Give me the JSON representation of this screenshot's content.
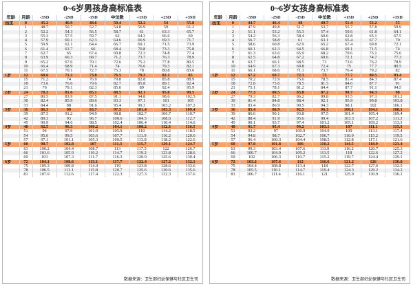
{
  "panels": [
    {
      "id": "boys",
      "title": "0~6岁男孩身高标准表",
      "headers": [
        "年龄",
        "月龄",
        "-3SD",
        "-2SD",
        "-1SD",
        "中位数",
        "+1SD",
        "+2SD",
        "+3SD"
      ],
      "source": "数据来源：卫生部妇幼保健与社区卫生司",
      "rows": [
        [
          "出生",
          "0",
          "45.2",
          "46.9",
          "48.6",
          "50.4",
          "52.2",
          "54",
          "55.8"
        ],
        [
          "",
          "1",
          "48.7",
          "50.7",
          "52.7",
          "54.8",
          "56.9",
          "59",
          "61.2"
        ],
        [
          "",
          "2",
          "52.2",
          "54.3",
          "56.5",
          "58.7",
          "61",
          "63.3",
          "65.7"
        ],
        [
          "",
          "3",
          "55.3",
          "57.5",
          "59.7",
          "62",
          "64.3",
          "66.6",
          "69"
        ],
        [
          "",
          "4",
          "57.9",
          "60.1",
          "62.3",
          "64.6",
          "66.9",
          "69.3",
          "71.7"
        ],
        [
          "",
          "5",
          "59.9",
          "62.1",
          "64.4",
          "66.7",
          "69.1",
          "71.5",
          "73.9"
        ],
        [
          "",
          "6",
          "61.4",
          "63.7",
          "66",
          "68.4",
          "70.8",
          "73.3",
          "75.8"
        ],
        [
          "",
          "7",
          "62.7",
          "65",
          "67.4",
          "69.8",
          "72.3",
          "74.8",
          "77.4"
        ],
        [
          "",
          "8",
          "63.9",
          "66.3",
          "68.7",
          "71.2",
          "73.7",
          "76.3",
          "78.9"
        ],
        [
          "",
          "9",
          "65.2",
          "67.6",
          "70.1",
          "72.6",
          "75.2",
          "77.8",
          "80.5"
        ],
        [
          "",
          "10",
          "66.4",
          "68.9",
          "71.4",
          "74",
          "76.6",
          "79.3",
          "82.1"
        ],
        [
          "",
          "11",
          "67.5",
          "70.1",
          "72.7",
          "75.3",
          "78",
          "80.8",
          "83.6"
        ],
        [
          "1岁",
          "12",
          "68.6",
          "71.2",
          "73.8",
          "76.5",
          "79.3",
          "82.1",
          "85"
        ],
        [
          "",
          "15",
          "71.2",
          "74",
          "76.9",
          "79.8",
          "82.8",
          "85.8",
          "88.9"
        ],
        [
          "",
          "18",
          "73.6",
          "76.6",
          "79.6",
          "82.7",
          "85.8",
          "89.1",
          "92.4"
        ],
        [
          "",
          "21",
          "76",
          "79.1",
          "82.3",
          "85.6",
          "89",
          "92.4",
          "95.9"
        ],
        [
          "2岁",
          "24",
          "78.3",
          "81.6",
          "85.1",
          "88.5",
          "92.1",
          "95.8",
          "99.5"
        ],
        [
          "",
          "27",
          "80.5",
          "83.9",
          "87.5",
          "91.1",
          "94.8",
          "98.6",
          "102.5"
        ],
        [
          "",
          "30",
          "82.4",
          "85.9",
          "89.6",
          "93.3",
          "97.1",
          "101",
          "105"
        ],
        [
          "",
          "33",
          "84.4",
          "88",
          "91.6",
          "95.4",
          "99.3",
          "103.2",
          "107.2"
        ],
        [
          "3岁",
          "36",
          "86.3",
          "90",
          "93.7",
          "97.5",
          "101.4",
          "105.3",
          "109.4"
        ],
        [
          "",
          "39",
          "87.5",
          "91.2",
          "94.9",
          "98.8",
          "102.7",
          "106.7",
          "110.7"
        ],
        [
          "",
          "42",
          "89.3",
          "93",
          "96.7",
          "100.6",
          "104.5",
          "108.6",
          "112.7"
        ],
        [
          "",
          "45",
          "90.9",
          "94.6",
          "98.5",
          "102.4",
          "106.4",
          "110.4",
          "114.6"
        ],
        [
          "4岁",
          "48",
          "92.5",
          "96.3",
          "100.2",
          "104.1",
          "108.2",
          "112.3",
          "116.5"
        ],
        [
          "",
          "51",
          "94",
          "97.9",
          "101.9",
          "105.9",
          "110",
          "114.2",
          "118.5"
        ],
        [
          "",
          "54",
          "95.6",
          "99.5",
          "103.6",
          "107.7",
          "111.9",
          "116.2",
          "120.6"
        ],
        [
          "",
          "57",
          "97.1",
          "101.1",
          "105.3",
          "109.5",
          "113.8",
          "118.2",
          "122.6"
        ],
        [
          "5岁",
          "60",
          "98.7",
          "102.8",
          "107",
          "111.3",
          "115.7",
          "120.1",
          "124.7"
        ],
        [
          "",
          "63",
          "100.2",
          "104.4",
          "108.7",
          "113",
          "117.5",
          "122",
          "126.7"
        ],
        [
          "",
          "66",
          "101.6",
          "105.9",
          "110.2",
          "114.7",
          "119.2",
          "123.8",
          "128.6"
        ],
        [
          "",
          "69",
          "103",
          "107.3",
          "111.7",
          "116.3",
          "120.9",
          "125.6",
          "130.4"
        ],
        [
          "6岁",
          "72",
          "104.1",
          "108.6",
          "113.1",
          "117.7",
          "122.4",
          "127.2",
          "132.1"
        ],
        [
          "",
          "75",
          "105.3",
          "109.8",
          "114.4",
          "119",
          "123.8",
          "128.6",
          "133.6"
        ],
        [
          "",
          "78",
          "106.5",
          "111.1",
          "115.8",
          "120.7",
          "125.6",
          "130.6",
          "135.6"
        ],
        [
          "",
          "81",
          "107.9",
          "112.6",
          "117.4",
          "122.3",
          "127.3",
          "132.3",
          "137.6"
        ]
      ]
    },
    {
      "id": "girls",
      "title": "0~6岁女孩身高标准表",
      "headers": [
        "年龄",
        "月龄",
        "-3SD",
        "-2SD",
        "-1SD",
        "中位数",
        "+1SD",
        "+2SD",
        "+3SD"
      ],
      "source": "数据来源：卫生部妇幼保健与社区卫生司",
      "rows": [
        [
          "出生",
          "0",
          "44.7",
          "46.4",
          "48",
          "49.7",
          "51.4",
          "53.2",
          "55"
        ],
        [
          "",
          "1",
          "47.9",
          "49.8",
          "51.7",
          "53.7",
          "55.7",
          "57.8",
          "59.9"
        ],
        [
          "",
          "2",
          "51.1",
          "53.2",
          "55.3",
          "57.4",
          "59.6",
          "61.8",
          "64.1"
        ],
        [
          "",
          "3",
          "54.2",
          "56.3",
          "58.4",
          "60.6",
          "62.8",
          "65.1",
          "67.5"
        ],
        [
          "",
          "4",
          "56.7",
          "58.8",
          "61",
          "63.1",
          "65.4",
          "67.7",
          "70"
        ],
        [
          "",
          "5",
          "58.6",
          "60.8",
          "62.9",
          "65.2",
          "67.4",
          "69.8",
          "72.1"
        ],
        [
          "",
          "6",
          "60.1",
          "62.3",
          "64.5",
          "66.8",
          "69.1",
          "71.5",
          "74"
        ],
        [
          "",
          "7",
          "61.3",
          "63.6",
          "65.9",
          "68.2",
          "70.6",
          "73.1",
          "75.6"
        ],
        [
          "",
          "8",
          "62.5",
          "64.8",
          "67.2",
          "69.6",
          "72.1",
          "74.7",
          "77.3"
        ],
        [
          "",
          "9",
          "63.7",
          "66.1",
          "68.5",
          "71",
          "73.6",
          "76.2",
          "78.9"
        ],
        [
          "",
          "10",
          "64.9",
          "67.3",
          "69.8",
          "72.4",
          "75",
          "77.7",
          "80.5"
        ],
        [
          "",
          "11",
          "66.1",
          "68.6",
          "71.1",
          "73.7",
          "76.4",
          "79.2",
          "82"
        ],
        [
          "1岁",
          "12",
          "67.2",
          "69.7",
          "72.3",
          "75",
          "77.7",
          "80.5",
          "83.4"
        ],
        [
          "",
          "15",
          "70.2",
          "72.9",
          "75.6",
          "78.5",
          "81.4",
          "84.3",
          "87.4"
        ],
        [
          "",
          "18",
          "72.8",
          "75.6",
          "78.5",
          "81.5",
          "84.6",
          "87.7",
          "91"
        ],
        [
          "",
          "21",
          "75.1",
          "78.1",
          "81.2",
          "84.4",
          "87.7",
          "91.1",
          "94.5"
        ],
        [
          "2岁",
          "24",
          "77.3",
          "80.5",
          "83.8",
          "87.2",
          "90.7",
          "94.3",
          "98"
        ],
        [
          "",
          "27",
          "79.3",
          "82.7",
          "86.2",
          "89.8",
          "93.5",
          "97.3",
          "101.2"
        ],
        [
          "",
          "30",
          "81.4",
          "84.8",
          "88.4",
          "92.1",
          "95.9",
          "99.8",
          "103.8"
        ],
        [
          "",
          "33",
          "83.4",
          "86.9",
          "90.5",
          "94.3",
          "98.1",
          "102",
          "106.1"
        ],
        [
          "3岁",
          "36",
          "85.4",
          "88.9",
          "92.5",
          "96.3",
          "100.1",
          "104.1",
          "108.1"
        ],
        [
          "",
          "39",
          "86.6",
          "90.1",
          "93.8",
          "97.5",
          "101.4",
          "105.4",
          "109.4"
        ],
        [
          "",
          "42",
          "88.4",
          "91.9",
          "95.6",
          "99.4",
          "103.3",
          "107.2",
          "111.3"
        ],
        [
          "",
          "45",
          "90.1",
          "93.7",
          "97.4",
          "101.2",
          "105.1",
          "109.2",
          "113.3"
        ],
        [
          "4岁",
          "48",
          "91.7",
          "95.4",
          "99.2",
          "103.1",
          "107",
          "111.1",
          "115.3"
        ],
        [
          "",
          "51",
          "93.2",
          "97",
          "100.9",
          "104.9",
          "109",
          "113.1",
          "117.4"
        ],
        [
          "",
          "54",
          "94.8",
          "98.7",
          "102.7",
          "106.7",
          "110.9",
          "115.2",
          "119.5"
        ],
        [
          "",
          "57",
          "96.4",
          "100.3",
          "104.4",
          "108.5",
          "112.8",
          "117.1",
          "121.6"
        ],
        [
          "5岁",
          "60",
          "97.8",
          "101.8",
          "106",
          "110.2",
          "114.5",
          "118.9",
          "123.4"
        ],
        [
          "",
          "63",
          "99.3",
          "103.4",
          "107.6",
          "111.9",
          "116.2",
          "120.7",
          "125.3"
        ],
        [
          "",
          "66",
          "100.7",
          "104.9",
          "109.2",
          "113.5",
          "118",
          "122.6",
          "127.2"
        ],
        [
          "",
          "69",
          "102",
          "106.3",
          "110.7",
          "115.2",
          "119.7",
          "124.4",
          "129.1"
        ],
        [
          "6岁",
          "72",
          "103.2",
          "107.6",
          "112",
          "116.6",
          "121.2",
          "126",
          "130.8"
        ],
        [
          "",
          "75",
          "104.4",
          "108.8",
          "113.4",
          "118",
          "122.7",
          "127.6",
          "132.5"
        ],
        [
          "",
          "78",
          "105.5",
          "110.1",
          "114.7",
          "119.4",
          "124.3",
          "129.2",
          "134.2"
        ],
        [
          "",
          "81",
          "106.7",
          "111.4",
          "116.1",
          "121",
          "125.9",
          "130.9",
          "136.1"
        ]
      ]
    }
  ]
}
